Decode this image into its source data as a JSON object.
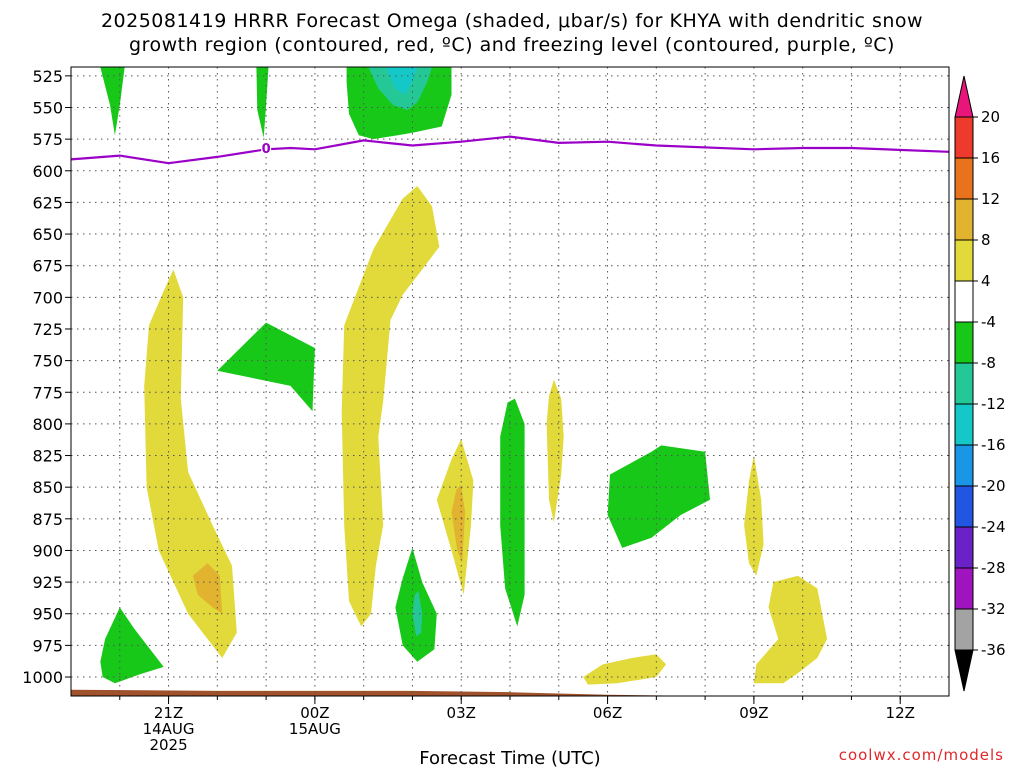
{
  "title_line1": "2025081419 HRRR Forecast Omega (shaded, μbar/s) for KHYA with dendritic snow",
  "title_line2": "growth region (contoured, red, ºC) and freezing level (contoured, purple, ºC)",
  "credit": "coolwx.com/models",
  "colors": {
    "freezing_level": "#9b00c8",
    "terrain": "#a0522d",
    "grid": "#555555"
  },
  "chart_data": {
    "type": "heatmap",
    "xlabel": "Forecast Time (UTC)",
    "ylabel": "",
    "x_range_hours_utc_from_21Z": [
      -2,
      16
    ],
    "y_axis": {
      "unit": "hPa",
      "inverted": true,
      "range": [
        1015,
        518
      ],
      "ticks": [
        525,
        550,
        575,
        600,
        625,
        650,
        675,
        700,
        725,
        750,
        775,
        800,
        825,
        850,
        875,
        900,
        925,
        950,
        975,
        1000
      ]
    },
    "x_ticks": [
      {
        "hour": 0,
        "lines": [
          "21Z",
          "14AUG",
          "2025"
        ]
      },
      {
        "hour": 3,
        "lines": [
          "00Z",
          "15AUG"
        ]
      },
      {
        "hour": 6,
        "lines": [
          "03Z"
        ]
      },
      {
        "hour": 9,
        "lines": [
          "06Z"
        ]
      },
      {
        "hour": 12,
        "lines": [
          "09Z"
        ]
      },
      {
        "hour": 15,
        "lines": [
          "12Z"
        ]
      }
    ],
    "grid": true,
    "colorbar": {
      "unit": "μbar/s",
      "tick_labels": [
        "20",
        "16",
        "12",
        "8",
        "4",
        "-4",
        "-8",
        "-12",
        "-16",
        "-20",
        "-24",
        "-28",
        "-32",
        "-36"
      ],
      "bins": [
        {
          "color": "#e8157a",
          "shape": "up-arrow"
        },
        {
          "color": "#ee3a2c"
        },
        {
          "color": "#e8731c"
        },
        {
          "color": "#e2b32e"
        },
        {
          "color": "#e2da3a"
        },
        {
          "color": "#ffffff"
        },
        {
          "color": "#18c818"
        },
        {
          "color": "#24c896"
        },
        {
          "color": "#14c8c8"
        },
        {
          "color": "#1a96e6"
        },
        {
          "color": "#2255e2"
        },
        {
          "color": "#6a22c8"
        },
        {
          "color": "#a014c0"
        },
        {
          "color": "#a3a3a3"
        },
        {
          "color": "#000000",
          "shape": "down-arrow"
        }
      ]
    },
    "freezing_level": {
      "label": "0",
      "label_at": {
        "hour": 2,
        "p": 582
      },
      "points": [
        [
          -2,
          591
        ],
        [
          -1,
          588
        ],
        [
          0,
          594
        ],
        [
          1,
          589
        ],
        [
          2,
          583
        ],
        [
          2.5,
          582
        ],
        [
          3,
          583
        ],
        [
          4,
          576
        ],
        [
          5,
          580
        ],
        [
          6,
          577
        ],
        [
          7,
          573
        ],
        [
          8,
          578
        ],
        [
          9,
          577
        ],
        [
          10,
          580
        ],
        [
          12,
          583
        ],
        [
          13,
          582
        ],
        [
          14,
          582
        ],
        [
          16,
          585
        ]
      ]
    },
    "terrain": {
      "points": [
        [
          -2,
          1010
        ],
        [
          1,
          1011
        ],
        [
          3,
          1011
        ],
        [
          5,
          1011
        ],
        [
          7,
          1012
        ],
        [
          9,
          1014
        ],
        [
          11,
          1015
        ],
        [
          13,
          1015
        ],
        [
          16,
          1015
        ]
      ]
    },
    "shaded_regions": [
      {
        "omega_bin": "4 to 8",
        "color": "#e2da3a",
        "points": [
          [
            -0.4,
            722
          ],
          [
            -0.1,
            695
          ],
          [
            0.1,
            678
          ],
          [
            0.3,
            700
          ],
          [
            0.25,
            780
          ],
          [
            0.4,
            838
          ],
          [
            0.9,
            880
          ],
          [
            1.3,
            912
          ],
          [
            1.4,
            965
          ],
          [
            1.1,
            985
          ],
          [
            0.4,
            950
          ],
          [
            -0.2,
            900
          ],
          [
            -0.45,
            850
          ],
          [
            -0.5,
            770
          ]
        ]
      },
      {
        "omega_bin": "8 to 12",
        "color": "#e2b32e",
        "points": [
          [
            0.5,
            920
          ],
          [
            0.8,
            910
          ],
          [
            1.05,
            920
          ],
          [
            1.1,
            950
          ],
          [
            0.9,
            945
          ],
          [
            0.6,
            935
          ]
        ]
      },
      {
        "omega_bin": "4 to 8",
        "color": "#e2da3a",
        "points": [
          [
            3.6,
            722
          ],
          [
            4.2,
            662
          ],
          [
            4.8,
            622
          ],
          [
            5.1,
            612
          ],
          [
            5.4,
            628
          ],
          [
            5.55,
            660
          ],
          [
            5.2,
            678
          ],
          [
            4.8,
            698
          ],
          [
            4.55,
            718
          ],
          [
            4.4,
            782
          ],
          [
            4.3,
            810
          ],
          [
            4.4,
            880
          ],
          [
            4.25,
            912
          ],
          [
            4.15,
            950
          ],
          [
            3.95,
            960
          ],
          [
            3.7,
            940
          ],
          [
            3.6,
            880
          ],
          [
            3.55,
            790
          ]
        ]
      },
      {
        "omega_bin": "4 to 8",
        "color": "#e2da3a",
        "points": [
          [
            5.5,
            860
          ],
          [
            5.8,
            828
          ],
          [
            6.0,
            812
          ],
          [
            6.25,
            845
          ],
          [
            6.2,
            880
          ],
          [
            6.05,
            935
          ],
          [
            5.8,
            900
          ]
        ]
      },
      {
        "omega_bin": "8 to 12",
        "color": "#e2b32e",
        "points": [
          [
            5.8,
            870
          ],
          [
            5.9,
            852
          ],
          [
            6.0,
            848
          ],
          [
            6.08,
            870
          ],
          [
            6.02,
            910
          ],
          [
            5.92,
            900
          ]
        ]
      },
      {
        "omega_bin": "4 to 8",
        "color": "#e2da3a",
        "points": [
          [
            7.75,
            800
          ],
          [
            7.8,
            778
          ],
          [
            7.9,
            765
          ],
          [
            8.05,
            780
          ],
          [
            8.1,
            810
          ],
          [
            8.05,
            840
          ],
          [
            7.9,
            878
          ],
          [
            7.8,
            860
          ]
        ]
      },
      {
        "omega_bin": "4 to 8",
        "color": "#e2da3a",
        "points": [
          [
            8.5,
            1000
          ],
          [
            8.9,
            990
          ],
          [
            9.5,
            985
          ],
          [
            10.0,
            982
          ],
          [
            10.2,
            990
          ],
          [
            10.0,
            1000
          ],
          [
            9.2,
            1005
          ],
          [
            8.6,
            1006
          ]
        ]
      },
      {
        "omega_bin": "4 to 8",
        "color": "#e2da3a",
        "points": [
          [
            11.8,
            880
          ],
          [
            11.9,
            845
          ],
          [
            12.0,
            825
          ],
          [
            12.15,
            860
          ],
          [
            12.2,
            895
          ],
          [
            12.05,
            920
          ],
          [
            11.9,
            910
          ]
        ]
      },
      {
        "omega_bin": "4 to 8",
        "color": "#e2da3a",
        "points": [
          [
            12.4,
            925
          ],
          [
            12.9,
            920
          ],
          [
            13.3,
            930
          ],
          [
            13.5,
            970
          ],
          [
            13.3,
            985
          ],
          [
            12.9,
            997
          ],
          [
            12.6,
            1005
          ],
          [
            12.0,
            1005
          ],
          [
            12.05,
            990
          ],
          [
            12.5,
            970
          ],
          [
            12.3,
            945
          ]
        ]
      },
      {
        "omega_bin": "-8 to -4",
        "color": "#18c818",
        "points": [
          [
            -1.4,
            518
          ],
          [
            -0.9,
            518
          ],
          [
            -1.0,
            548
          ],
          [
            -1.1,
            572
          ],
          [
            -1.2,
            548
          ]
        ]
      },
      {
        "omega_bin": "-8 to -4",
        "color": "#18c818",
        "points": [
          [
            1.8,
            518
          ],
          [
            2.05,
            518
          ],
          [
            2.0,
            548
          ],
          [
            1.95,
            574
          ],
          [
            1.82,
            552
          ]
        ]
      },
      {
        "omega_bin": "-8 to -4",
        "color": "#18c818",
        "points": [
          [
            3.65,
            518
          ],
          [
            5.8,
            518
          ],
          [
            5.8,
            540
          ],
          [
            5.6,
            565
          ],
          [
            5.0,
            570
          ],
          [
            4.7,
            572
          ],
          [
            4.2,
            575
          ],
          [
            3.9,
            572
          ],
          [
            3.7,
            555
          ],
          [
            3.65,
            530
          ]
        ]
      },
      {
        "omega_bin": "-12 to -8",
        "color": "#24c896",
        "points": [
          [
            4.1,
            518
          ],
          [
            5.4,
            518
          ],
          [
            5.3,
            530
          ],
          [
            5.1,
            546
          ],
          [
            4.9,
            552
          ],
          [
            4.6,
            548
          ],
          [
            4.3,
            535
          ]
        ]
      },
      {
        "omega_bin": "-16 to -12",
        "color": "#14c8c8",
        "points": [
          [
            4.45,
            518
          ],
          [
            5.1,
            518
          ],
          [
            5.0,
            530
          ],
          [
            4.85,
            540
          ],
          [
            4.65,
            535
          ]
        ]
      },
      {
        "omega_bin": "-8 to -4",
        "color": "#18c818",
        "points": [
          [
            1.0,
            758
          ],
          [
            2.0,
            720
          ],
          [
            3.0,
            740
          ],
          [
            2.95,
            790
          ],
          [
            2.5,
            770
          ]
        ]
      },
      {
        "omega_bin": "-8 to -4",
        "color": "#18c818",
        "points": [
          [
            -1.4,
            988
          ],
          [
            -1.3,
            970
          ],
          [
            -1.0,
            945
          ],
          [
            -0.7,
            962
          ],
          [
            -0.1,
            992
          ],
          [
            -0.6,
            998
          ],
          [
            -1.1,
            1005
          ],
          [
            -1.35,
            1000
          ]
        ]
      },
      {
        "omega_bin": "-8 to -4",
        "color": "#18c818",
        "points": [
          [
            4.65,
            945
          ],
          [
            4.8,
            922
          ],
          [
            5.0,
            898
          ],
          [
            5.2,
            925
          ],
          [
            5.5,
            950
          ],
          [
            5.45,
            978
          ],
          [
            5.1,
            988
          ],
          [
            4.8,
            975
          ]
        ]
      },
      {
        "omega_bin": "-12 to -8",
        "color": "#24c896",
        "points": [
          [
            5.0,
            950
          ],
          [
            5.05,
            935
          ],
          [
            5.12,
            932
          ],
          [
            5.2,
            950
          ],
          [
            5.18,
            965
          ],
          [
            5.08,
            968
          ]
        ]
      },
      {
        "omega_bin": "-8 to -4",
        "color": "#18c818",
        "points": [
          [
            6.8,
            810
          ],
          [
            6.95,
            783
          ],
          [
            7.1,
            780
          ],
          [
            7.3,
            800
          ],
          [
            7.3,
            880
          ],
          [
            7.3,
            935
          ],
          [
            7.15,
            960
          ],
          [
            6.9,
            930
          ],
          [
            6.8,
            880
          ]
        ]
      },
      {
        "omega_bin": "-8 to -4",
        "color": "#18c818",
        "points": [
          [
            9.0,
            872
          ],
          [
            9.05,
            840
          ],
          [
            9.9,
            822
          ],
          [
            10.1,
            817
          ],
          [
            11.0,
            822
          ],
          [
            11.1,
            860
          ],
          [
            10.5,
            872
          ],
          [
            9.9,
            890
          ],
          [
            9.3,
            898
          ]
        ]
      }
    ]
  }
}
